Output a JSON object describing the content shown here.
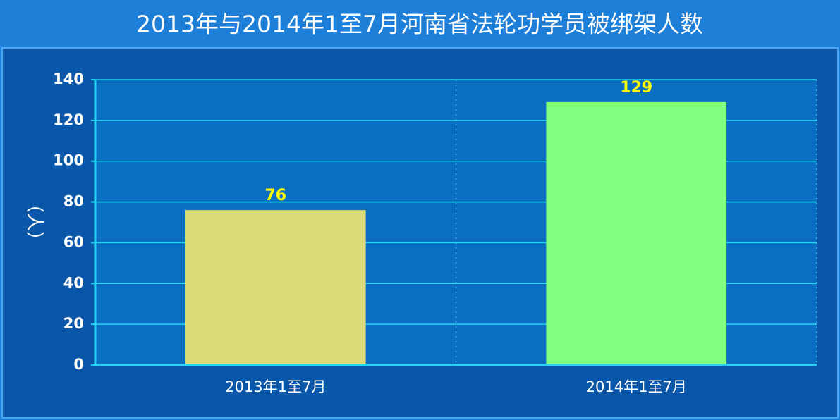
{
  "chart_data": {
    "type": "bar",
    "title": "2013年与2014年1至7月河南省法轮功学员被绑架人数",
    "y_label": "（人）",
    "categories": [
      "2013年1至7月",
      "2014年1至7月"
    ],
    "values": [
      76,
      129
    ],
    "colors": [
      "#dcdc78",
      "#80ff80"
    ],
    "ylim": [
      0,
      140
    ],
    "yticks": [
      0,
      20,
      40,
      60,
      80,
      100,
      120,
      140
    ],
    "grid": true
  }
}
